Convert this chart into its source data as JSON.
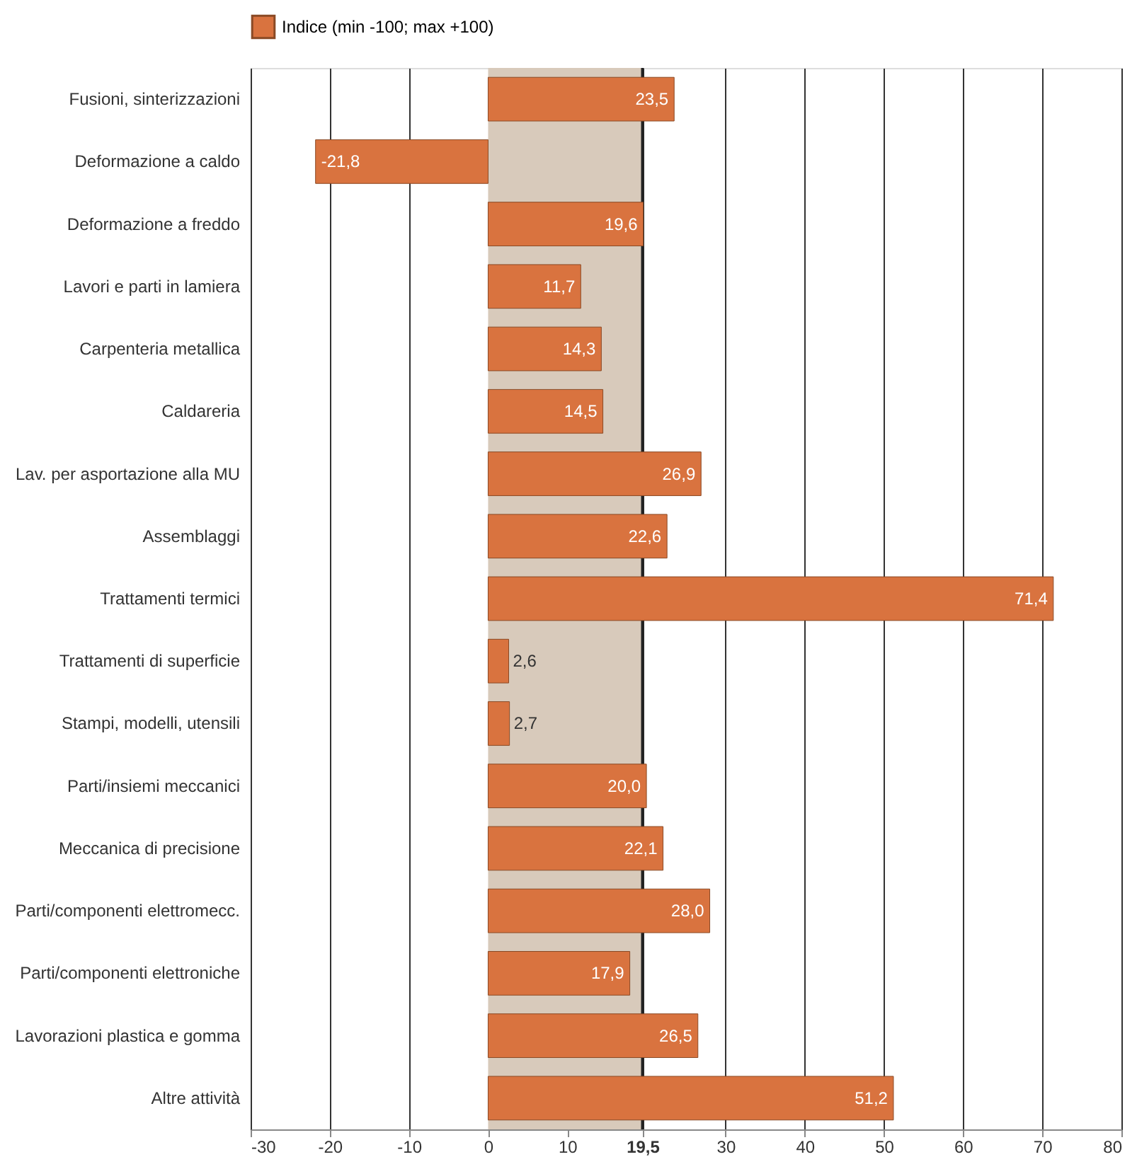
{
  "chart_data": {
    "type": "bar",
    "orientation": "horizontal",
    "categories": [
      "Fusioni, sinterizzazioni",
      "Deformazione a caldo",
      "Deformazione a freddo",
      "Lavori e parti in lamiera",
      "Carpenteria metallica",
      "Caldareria",
      "Lav. per asportazione alla MU",
      "Assemblaggi",
      "Trattamenti termici",
      "Trattamenti di superficie",
      "Stampi, modelli, utensili",
      "Parti/insiemi meccanici",
      "Meccanica di precisione",
      "Parti/componenti elettromecc.",
      "Parti/componenti elettroniche",
      "Lavorazioni plastica e gomma",
      "Altre attività"
    ],
    "series": [
      {
        "name": "Indice (min -100; max +100)",
        "color": "#d9733f",
        "values": [
          23.5,
          -21.8,
          19.6,
          11.7,
          14.3,
          14.5,
          26.9,
          22.6,
          71.4,
          2.6,
          2.7,
          20.0,
          22.1,
          28.0,
          17.9,
          26.5,
          51.2
        ],
        "value_labels": [
          "23,5",
          "-21,8",
          "19,6",
          "11,7",
          "14,3",
          "14,5",
          "26,9",
          "22,6",
          "71,4",
          "2,6",
          "2,7",
          "20,0",
          "22,1",
          "28,0",
          "17,9",
          "26,5",
          "51,2"
        ]
      }
    ],
    "xlim": [
      -30,
      80
    ],
    "xticks": [
      -30,
      -20,
      -10,
      0,
      10,
      {
        "value": 19.5,
        "label": "19,5"
      },
      30,
      40,
      50,
      60,
      70,
      80
    ],
    "bands": [
      {
        "axis": "x",
        "from": 0,
        "to": 19.5,
        "color": "#d8cabb"
      }
    ],
    "ref_lines": [
      {
        "axis": "x",
        "value": 19.5,
        "color": "#222222"
      }
    ],
    "grid": "x",
    "legend": "top"
  }
}
